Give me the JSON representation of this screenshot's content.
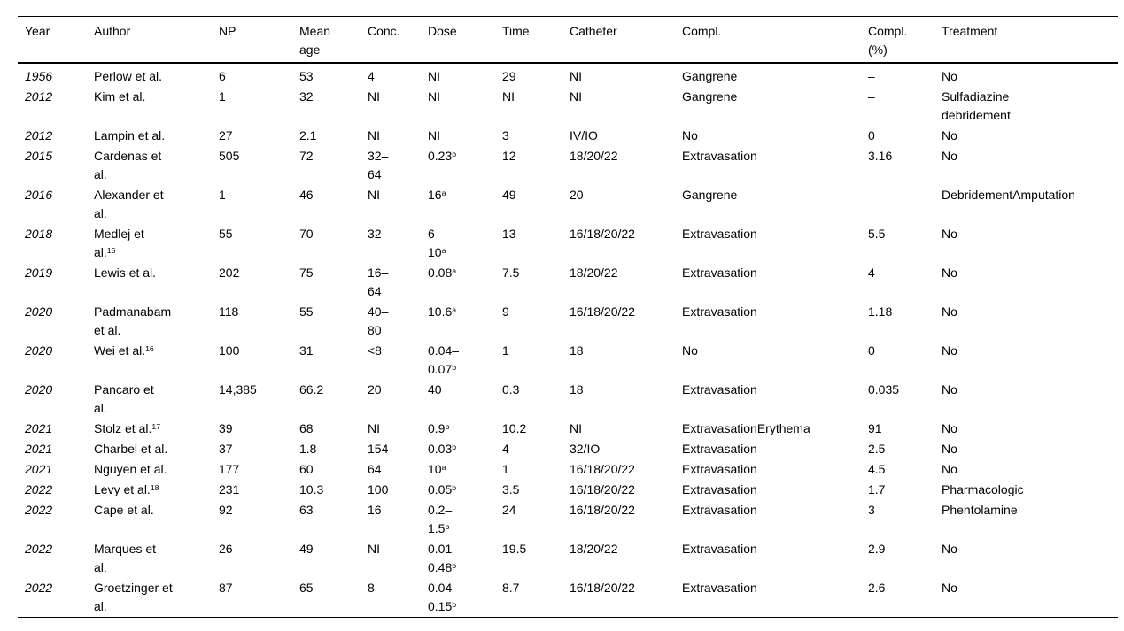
{
  "table": {
    "columns": [
      {
        "key": "year",
        "label": "Year"
      },
      {
        "key": "author",
        "label": "Author"
      },
      {
        "key": "np",
        "label": "NP"
      },
      {
        "key": "mean_age",
        "label": "Mean\nage"
      },
      {
        "key": "conc",
        "label": "Conc."
      },
      {
        "key": "dose",
        "label": "Dose"
      },
      {
        "key": "time",
        "label": "Time"
      },
      {
        "key": "catheter",
        "label": "Catheter"
      },
      {
        "key": "compl",
        "label": "Compl."
      },
      {
        "key": "compl_pct",
        "label": "Compl.\n(%)"
      },
      {
        "key": "treatment",
        "label": "Treatment"
      }
    ],
    "rows": [
      {
        "year": "1956",
        "author": "Perlow et al.",
        "np": "6",
        "mean_age": "53",
        "conc": "4",
        "dose": "NI",
        "time": "29",
        "catheter": "NI",
        "compl": "Gangrene",
        "compl_pct": "–",
        "treatment": "No"
      },
      {
        "year": "2012",
        "author": "Kim et al.",
        "np": "1",
        "mean_age": "32",
        "conc": "NI",
        "dose": "NI",
        "time": "NI",
        "catheter": "NI",
        "compl": "Gangrene",
        "compl_pct": "–",
        "treatment": "Sulfadiazine\ndebridement"
      },
      {
        "year": "2012",
        "author": "Lampin et al.",
        "np": "27",
        "mean_age": "2.1",
        "conc": "NI",
        "dose": "NI",
        "time": "3",
        "catheter": "IV/IO",
        "compl": "No",
        "compl_pct": "0",
        "treatment": "No"
      },
      {
        "year": "2015",
        "author": "Cardenas et\nal.",
        "np": "505",
        "mean_age": "72",
        "conc": "32–\n64",
        "dose": "0.23^b",
        "time": "12",
        "catheter": "18/20/22",
        "compl": "Extravasation",
        "compl_pct": "3.16",
        "treatment": "No"
      },
      {
        "year": "2016",
        "author": "Alexander et\nal.",
        "np": "1",
        "mean_age": "46",
        "conc": "NI",
        "dose": "16^a",
        "time": "49",
        "catheter": "20",
        "compl": "Gangrene",
        "compl_pct": "–",
        "treatment": "DebridementAmputation"
      },
      {
        "year": "2018",
        "author": "Medlej et\nal.^15",
        "np": "55",
        "mean_age": "70",
        "conc": "32",
        "dose": "6–\n10^a",
        "time": "13",
        "catheter": "16/18/20/22",
        "compl": "Extravasation",
        "compl_pct": "5.5",
        "treatment": "No"
      },
      {
        "year": "2019",
        "author": "Lewis et al.",
        "np": "202",
        "mean_age": "75",
        "conc": "16–\n64",
        "dose": "0.08^a",
        "time": "7.5",
        "catheter": "18/20/22",
        "compl": "Extravasation",
        "compl_pct": "4",
        "treatment": "No"
      },
      {
        "year": "2020",
        "author": "Padmanabam\net al.",
        "np": "118",
        "mean_age": "55",
        "conc": "40–\n80",
        "dose": "10.6^a",
        "time": "9",
        "catheter": "16/18/20/22",
        "compl": "Extravasation",
        "compl_pct": "1.18",
        "treatment": "No"
      },
      {
        "year": "2020",
        "author": "Wei et al.^16",
        "np": "100",
        "mean_age": "31",
        "conc": "<8",
        "dose": "0.04–\n0.07^b",
        "time": "1",
        "catheter": "18",
        "compl": "No",
        "compl_pct": "0",
        "treatment": "No"
      },
      {
        "year": "2020",
        "author": "Pancaro et\nal.",
        "np": "14,385",
        "mean_age": "66.2",
        "conc": "20",
        "dose": "40",
        "time": "0.3",
        "catheter": "18",
        "compl": "Extravasation",
        "compl_pct": "0.035",
        "treatment": "No"
      },
      {
        "year": "2021",
        "author": "Stolz et al.^17",
        "np": "39",
        "mean_age": "68",
        "conc": "NI",
        "dose": "0.9^b",
        "time": "10.2",
        "catheter": "NI",
        "compl": "ExtravasationErythema",
        "compl_pct": "91",
        "treatment": "No"
      },
      {
        "year": "2021",
        "author": "Charbel et al.",
        "np": "37",
        "mean_age": "1.8",
        "conc": "154",
        "dose": "0.03^b",
        "time": "4",
        "catheter": "32/IO",
        "compl": "Extravasation",
        "compl_pct": "2.5",
        "treatment": "No"
      },
      {
        "year": "2021",
        "author": "Nguyen et al.",
        "np": "177",
        "mean_age": "60",
        "conc": "64",
        "dose": "10^a",
        "time": "1",
        "catheter": "16/18/20/22",
        "compl": "Extravasation",
        "compl_pct": "4.5",
        "treatment": "No"
      },
      {
        "year": "2022",
        "author": "Levy et al.^18",
        "np": "231",
        "mean_age": "10.3",
        "conc": "100",
        "dose": "0.05^b",
        "time": "3.5",
        "catheter": "16/18/20/22",
        "compl": "Extravasation",
        "compl_pct": "1.7",
        "treatment": "Pharmacologic"
      },
      {
        "year": "2022",
        "author": "Cape et al.",
        "np": "92",
        "mean_age": "63",
        "conc": "16",
        "dose": "0.2–\n1.5^b",
        "time": "24",
        "catheter": "16/18/20/22",
        "compl": "Extravasation",
        "compl_pct": "3",
        "treatment": "Phentolamine"
      },
      {
        "year": "2022",
        "author": "Marques et\nal.",
        "np": "26",
        "mean_age": "49",
        "conc": "NI",
        "dose": "0.01–\n0.48^b",
        "time": "19.5",
        "catheter": "18/20/22",
        "compl": "Extravasation",
        "compl_pct": "2.9",
        "treatment": "No"
      },
      {
        "year": "2022",
        "author": "Groetzinger et\nal.",
        "np": "87",
        "mean_age": "65",
        "conc": "8",
        "dose": "0.04–\n0.15^b",
        "time": "8.7",
        "catheter": "16/18/20/22",
        "compl": "Extravasation",
        "compl_pct": "2.6",
        "treatment": "No"
      }
    ]
  }
}
